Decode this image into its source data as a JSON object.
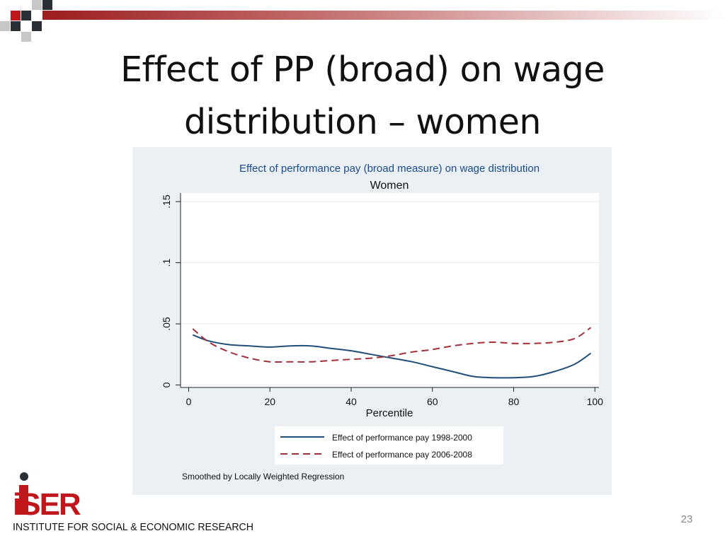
{
  "slide": {
    "title": "Effect of PP (broad) on wage distribution – women",
    "number": "23",
    "logo": {
      "wordmark": "iSER",
      "caption": "INSTITUTE FOR SOCIAL & ECONOMIC RESEARCH"
    }
  },
  "chart_data": {
    "type": "line",
    "title": "Effect of performance pay (broad measure) on wage distribution",
    "subtitle": "Women",
    "xlabel": "Percentile",
    "ylabel": "",
    "xlim": [
      -2,
      101
    ],
    "ylim": [
      -0.002,
      0.157
    ],
    "xticks": [
      0,
      20,
      40,
      60,
      80,
      100
    ],
    "xtick_labels": [
      "0",
      "20",
      "40",
      "60",
      "80",
      "100"
    ],
    "yticks": [
      0,
      0.05,
      0.1,
      0.15
    ],
    "ytick_labels": [
      "0",
      ".05",
      ".1",
      ".15"
    ],
    "grid": "horizontal",
    "legend_position": "bottom",
    "note": "Smoothed by Locally Weighted Regression",
    "colors": {
      "series1": "#1f4e79",
      "series2": "#a0303a",
      "plot_region": "#ffffff",
      "graph_region": "#eaf0f3"
    },
    "series": [
      {
        "name": "Effect of performance pay 1998-2000",
        "style": "solid",
        "x": [
          1,
          5,
          10,
          15,
          20,
          25,
          30,
          35,
          40,
          45,
          50,
          55,
          60,
          65,
          70,
          75,
          80,
          85,
          90,
          95,
          99
        ],
        "values": [
          0.041,
          0.036,
          0.033,
          0.032,
          0.031,
          0.032,
          0.032,
          0.03,
          0.028,
          0.025,
          0.022,
          0.019,
          0.015,
          0.011,
          0.007,
          0.006,
          0.006,
          0.007,
          0.011,
          0.017,
          0.026
        ]
      },
      {
        "name": "Effect of performance pay 2006-2008",
        "style": "dashed",
        "x": [
          1,
          5,
          10,
          15,
          20,
          25,
          30,
          35,
          40,
          45,
          50,
          55,
          60,
          65,
          70,
          75,
          80,
          85,
          90,
          95,
          99
        ],
        "values": [
          0.046,
          0.035,
          0.027,
          0.022,
          0.019,
          0.019,
          0.019,
          0.02,
          0.021,
          0.022,
          0.024,
          0.027,
          0.029,
          0.032,
          0.034,
          0.035,
          0.034,
          0.034,
          0.035,
          0.038,
          0.047
        ]
      }
    ]
  }
}
